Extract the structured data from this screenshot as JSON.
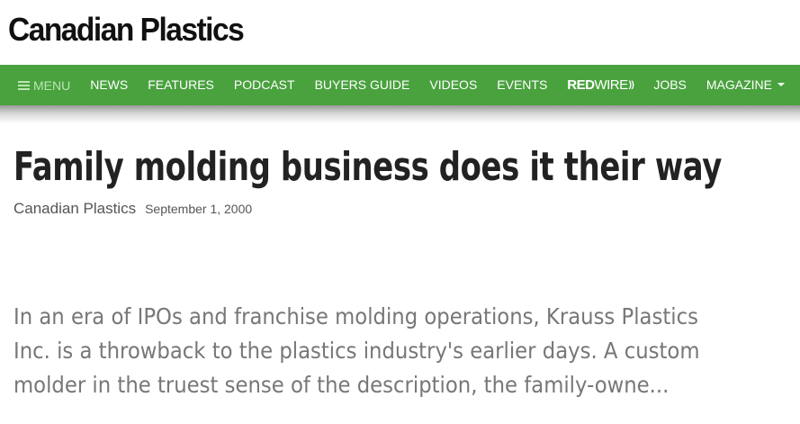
{
  "header": {
    "logo_text": "Canadian Plastics"
  },
  "nav": {
    "menu_label": "MENU",
    "items": [
      "NEWS",
      "FEATURES",
      "PODCAST",
      "BUYERS GUIDE",
      "VIDEOS",
      "EVENTS"
    ],
    "redwire_red": "RED",
    "redwire_wire": "WIRE",
    "jobs_label": "JOBS",
    "magazine_label": "MAGAZINE"
  },
  "article": {
    "title": "Family molding business does it their way",
    "author": "Canadian Plastics",
    "date": "September 1, 2000",
    "excerpt": "In an era of IPOs and franchise molding operations, Krauss Plastics Inc. is a throwback to the plastics industry's earlier days. A custom molder in the truest sense of the description, the family-owne..."
  },
  "colors": {
    "nav_green": "#4aa23f",
    "menu_text": "#b9e6b0",
    "title_text": "#222222",
    "excerpt_text": "#777777"
  },
  "icons": [
    "menu-icon",
    "redwire-signal-icon",
    "chevron-down-icon"
  ]
}
